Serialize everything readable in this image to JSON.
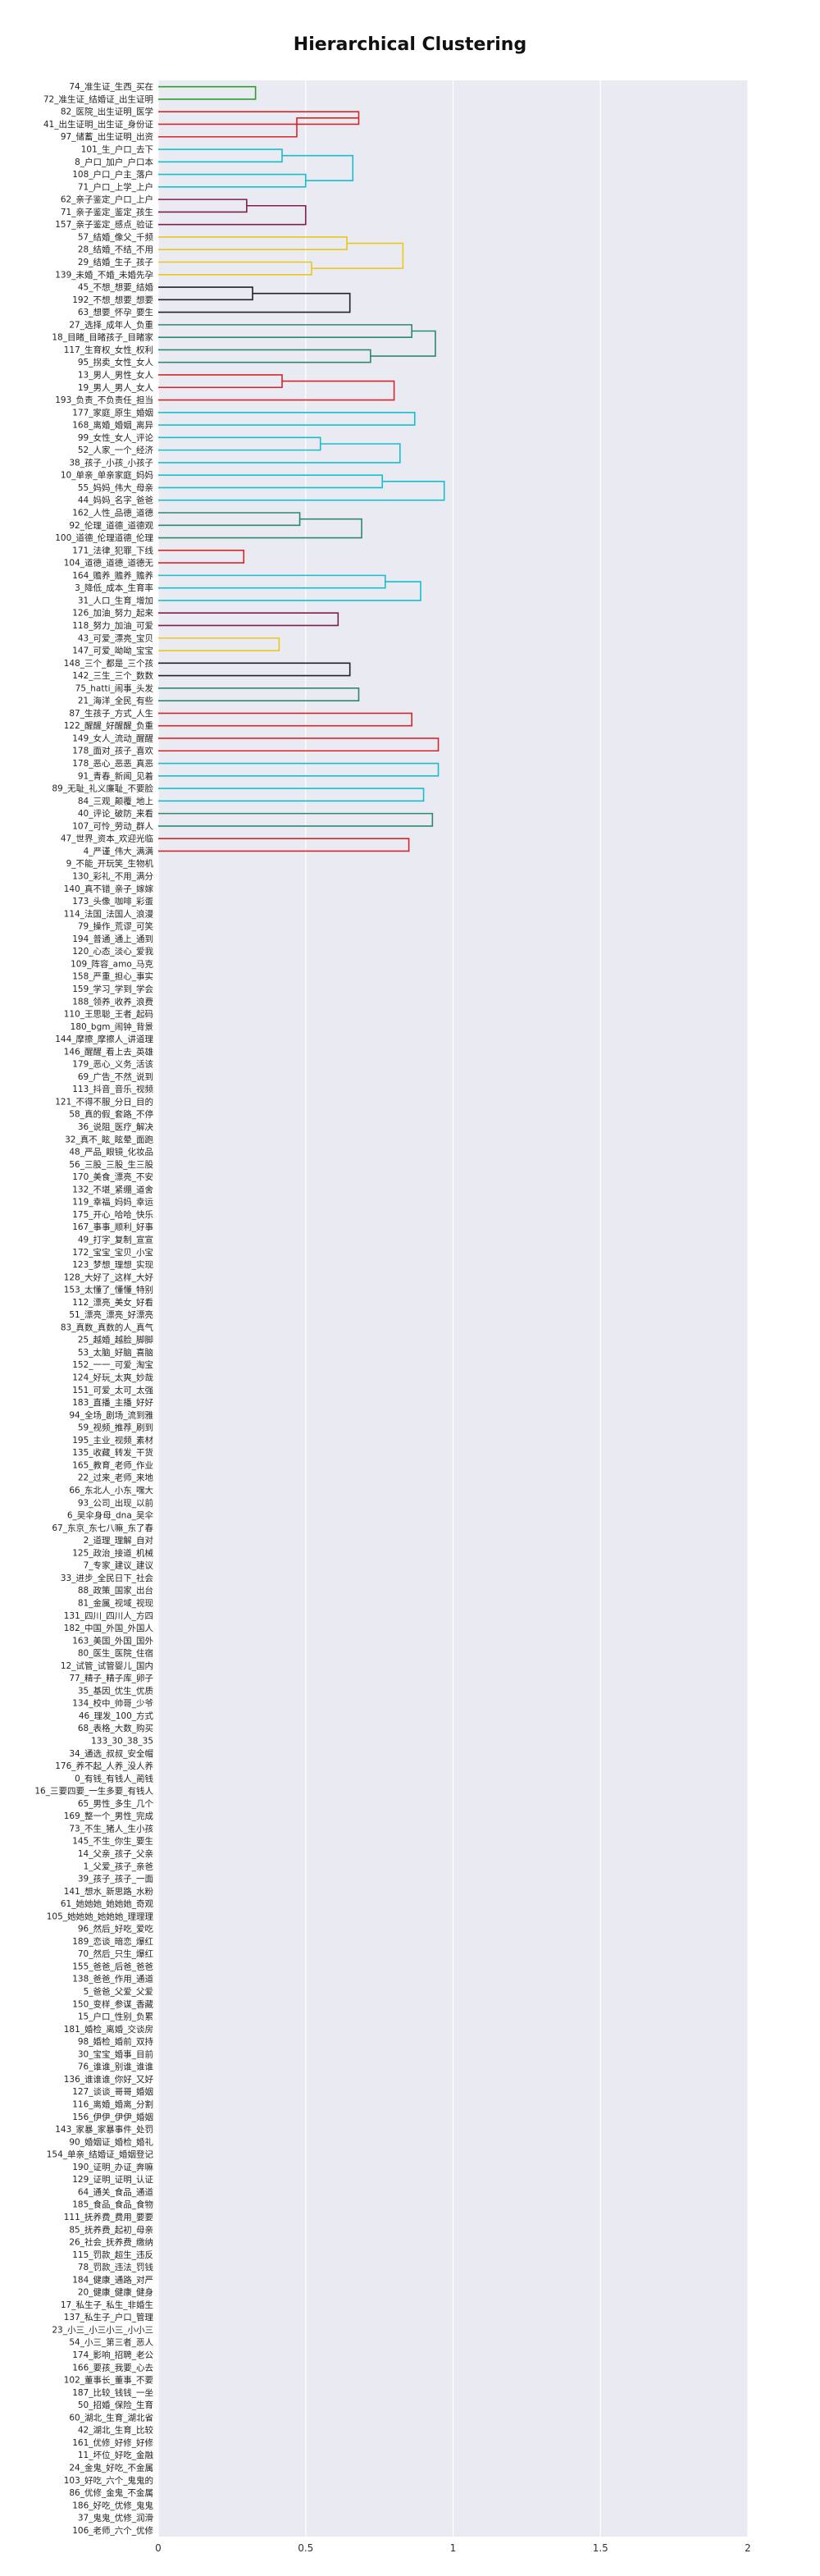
{
  "chart_data": {
    "type": "dendrogram",
    "title": "Hierarchical Clustering",
    "xlabel": "",
    "ylabel": "",
    "xlim": [
      0,
      2
    ],
    "x_ticks": [
      "0",
      "0.5",
      "1",
      "1.5",
      "2"
    ],
    "orientation": "left",
    "colors": {
      "plot_bg": "#eaeaf2",
      "grid": "#ffffff",
      "above": "#1f77b4",
      "cluster": [
        "#2ca02c",
        "#d62728",
        "#17becf",
        "#7f1f4f",
        "#e8c81a",
        "#222222",
        "#2a8a6a"
      ]
    },
    "leaves": [
      "74_准生证_生西_买在",
      "72_准生证_结婚证_出生证明",
      "82_医院_出生证明_医学",
      "41_出生证明_出生证_身份证",
      "97_储蓄_出生证明_出资",
      "101_生_户口_去下",
      "8_户口_加户_户口本",
      "108_户口_户主_落户",
      "71_户口_上学_上户",
      "62_亲子鉴定_户口_上户",
      "71_亲子鉴定_鉴定_孩生",
      "157_亲子鉴定_感点_验证",
      "57_结婚_像父_千频",
      "28_结婚_不结_不用",
      "29_结婚_生子_孩子",
      "139_未婚_不婚_未婚先孕",
      "45_不想_想要_结婚",
      "192_不想_想要_想要",
      "63_想要_怀孕_要生",
      "27_选择_成年人_负重",
      "18_目睹_目睹孩子_目睹家",
      "117_生育权_女性_权利",
      "95_拐卖_女性_女人",
      "13_男人_男性_女人",
      "19_男人_男人_女人",
      "193_负责_不负责任_担当",
      "177_家庭_原生_婚姻",
      "168_离婚_婚姻_离异",
      "99_女性_女人_评论",
      "52_人家_一个_经济",
      "38_孩子_小孩_小孩子",
      "10_单亲_单亲家庭_妈妈",
      "55_妈妈_伟大_母亲",
      "44_妈妈_名字_爸爸",
      "162_人性_品德_道德",
      "92_伦理_道德_道德观",
      "100_道德_伦理道德_伦理",
      "171_法律_犯罪_下线",
      "104_道德_道德_道德无",
      "164_赡养_赡养_赡养",
      "3_降低_成本_生育率",
      "31_人口_生育_增加",
      "126_加油_努力_起来",
      "118_努力_加油_可爱",
      "43_可爱_漂亮_宝贝",
      "147_可爱_呦呦_宝宝",
      "148_三个_都是_三个孩",
      "142_三生_三个_数数",
      "75_hatti_闹事_头发",
      "21_海洋_全民_有些",
      "87_生孩子_方式_人生",
      "122_醒醒_好醒醒_负重",
      "149_女人_流动_醒醒",
      "178_面对_孩子_喜欢",
      "178_恶心_恶恶_真恶",
      "91_青春_新闻_见着",
      "89_无耻_礼义廉耻_不要脸",
      "84_三观_颠覆_地上",
      "40_评论_破防_来看",
      "107_可怜_劳动_群人",
      "47_世界_资本_欢迎光临",
      "4_严谨_伟大_满满",
      "9_不能_开玩笑_生物机",
      "130_彩礼_不用_满分",
      "140_真不错_亲子_嫁嫁",
      "173_头像_咖啡_彩蛋",
      "114_法国_法国人_浪漫",
      "79_操作_荒谬_可笑",
      "194_普通_通上_通到",
      "120_心态_淡心_爱我",
      "109_阵容_amo_马克",
      "158_严重_担心_事实",
      "159_学习_学到_学会",
      "188_领养_收养_浪费",
      "110_王思聪_王者_起码",
      "180_bgm_闹钟_背景",
      "144_摩擦_摩擦人_讲道理",
      "146_醒醒_看上去_英雄",
      "179_恶心_义务_活该",
      "69_广告_不然_说到",
      "113_抖音_音乐_视频",
      "121_不得不服_分日_目的",
      "58_真的假_套路_不停",
      "36_说阻_医疗_解决",
      "32_真不_眩_眩晕_面跑",
      "48_严品_眼镜_化妆品",
      "56_三股_三股_生三股",
      "170_美食_漂亮_不安",
      "132_不堪_紧绷_道舍",
      "119_幸福_妈妈_幸运",
      "175_开心_哈哈_快乐",
      "167_事事_顺利_好事",
      "49_打字_复制_宣宣",
      "172_宝宝_宝贝_小宝",
      "123_梦想_理想_实现",
      "128_大好了_这样_大好",
      "153_太懂了_懂懂_特别",
      "112_漂亮_美女_好看",
      "51_漂亮_漂亮_好漂亮",
      "83_真数_真数的人_真气",
      "25_越婚_越脸_脚脚",
      "53_太脑_好脑_喜脑",
      "152_一一_可爱_淘宝",
      "124_好玩_太爽_妙哉",
      "151_可爱_太可_太强",
      "183_直播_主播_好好",
      "94_全场_剧场_流到雅",
      "59_视频_推荐_刷到",
      "195_主业_视频_素材",
      "135_收藏_转发_干货",
      "165_教育_老师_作业",
      "22_过来_老师_来地",
      "66_东北人_小东_嘿大",
      "93_公司_出现_以前",
      "6_吴伞身母_dna_吴伞",
      "67_东京_东七八嘛_东了春",
      "2_道理_理解_自对",
      "125_政治_接道_机械",
      "7_专家_建议_建议",
      "33_进步_全民日下_社会",
      "88_政策_国家_出台",
      "81_金属_视域_视现",
      "131_四川_四川人_方四",
      "182_中国_外国_外国人",
      "163_美国_外国_国外",
      "80_医生_医院_住宿",
      "12_试管_试管婴儿_国内",
      "77_精子_精子库_卵子",
      "35_基因_优生_优质",
      "134_校中_帅哥_少爷",
      "46_理发_100_方式",
      "68_表格_大数_购买",
      "133_30_38_35",
      "34_通选_叔叔_安全帽",
      "176_养不起_人养_没人养",
      "0_有钱_有钱人_蔺钱",
      "16_三要四要_一生多要_有钱人",
      "65_男性_多生_几个",
      "169_整一个_男性_完成",
      "73_不生_猪人_生小孩",
      "145_不生_你生_要生",
      "14_父亲_孩子_父亲",
      "1_父爱_孩子_亲爸",
      "39_孩子_孩子_一面",
      "141_想水_新思路_水粉",
      "61_她她她_她她她_奇观",
      "105_她她她_她她她_理理理",
      "96_然后_好吃_爱吃",
      "189_恋谈_暗恋_爆红",
      "70_然后_只生_爆红",
      "155_爸爸_后爸_爸爸",
      "138_爸爸_作用_通道",
      "5_爸爸_父爱_父爱",
      "150_变样_参谋_香藏",
      "15_户口_性别_负累",
      "181_婚检_离婚_交谈房",
      "98_婚检_婚前_双持",
      "30_宝宝_婚事_目前",
      "76_谁谁_别谁_谁谁",
      "136_谁谁谁_你好_又好",
      "127_谈谈_哥哥_婚姻",
      "116_离婚_婚离_分割",
      "156_伊伊_伊伊_婚姻",
      "143_家暴_家暴事件_处罚",
      "90_婚姻证_婚检_婚礼",
      "154_单亲_结婚证_婚姻登记",
      "190_证明_办证_奔嘛",
      "129_证明_证明_认证",
      "64_通关_食品_通道",
      "185_食品_食品_食物",
      "111_抚养费_费用_要要",
      "85_抚养费_起初_母亲",
      "26_社会_抚养费_缴纳",
      "115_罚款_超生_违反",
      "78_罚款_违法_罚钱",
      "184_健康_通路_对严",
      "20_健康_健康_健身",
      "17_私生子_私生_非婚生",
      "137_私生子_户口_管理",
      "23_小三_小三小三_小小三",
      "54_小三_第三者_恶人",
      "174_影响_招聘_老公",
      "166_要孩_我要_心去",
      "102_董事长_董事_不要",
      "187_比较_钱钱_一坐",
      "50_招婚_保险_生育",
      "60_湖北_生育_湖北省",
      "42_湖北_生育_比较",
      "161_优修_好修_好修",
      "11_坏位_好吃_金融",
      "24_金鬼_好吃_不金属",
      "103_好吃_六个_鬼鬼的",
      "86_优修_金鬼_不金属",
      "186_好吃_优修_鬼鬼",
      "37_鬼鬼_优修_润滑",
      "106_老师_六个_优修"
    ],
    "links": [
      {
        "children": [
          0,
          1
        ],
        "height": 0.33,
        "color": "cluster1"
      },
      {
        "children": [
          2,
          3
        ],
        "height": 0.68,
        "color": "cluster2"
      },
      {
        "children": [
          4,
          "n1"
        ],
        "height": 0.47,
        "color": "cluster2"
      },
      {
        "children": [
          5,
          6
        ],
        "height": 0.42,
        "color": "cluster3"
      },
      {
        "children": [
          7,
          8
        ],
        "height": 0.5,
        "color": "cluster3"
      },
      {
        "children": [
          "n3",
          "n4"
        ],
        "height": 0.66,
        "color": "cluster3"
      },
      {
        "children": [
          9,
          10
        ],
        "height": 0.3,
        "color": "cluster4"
      },
      {
        "children": [
          "n6",
          11
        ],
        "height": 0.5,
        "color": "cluster4"
      },
      {
        "children": [
          12,
          13
        ],
        "height": 0.64,
        "color": "cluster5"
      },
      {
        "children": [
          14,
          15
        ],
        "height": 0.52,
        "color": "cluster5"
      },
      {
        "children": [
          "n8",
          "n9"
        ],
        "height": 0.83,
        "color": "cluster5"
      },
      {
        "children": [
          16,
          17
        ],
        "height": 0.32,
        "color": "cluster6"
      },
      {
        "children": [
          "n11",
          18
        ],
        "height": 0.65,
        "color": "cluster6"
      },
      {
        "children": [
          19,
          20
        ],
        "height": 0.86,
        "color": "cluster7"
      },
      {
        "children": [
          21,
          22
        ],
        "height": 0.72,
        "color": "cluster7"
      },
      {
        "children": [
          "n13",
          "n14"
        ],
        "height": 0.94,
        "color": "cluster7"
      },
      {
        "children": [
          23,
          24
        ],
        "height": 0.42,
        "color": "cluster2"
      },
      {
        "children": [
          25,
          "n16"
        ],
        "height": 0.8,
        "color": "cluster2"
      },
      {
        "children": [
          26,
          27
        ],
        "height": 0.87,
        "color": "cluster3"
      },
      {
        "children": [
          28,
          29
        ],
        "height": 0.55,
        "color": "cluster3"
      },
      {
        "children": [
          30,
          "n19"
        ],
        "height": 0.82,
        "color": "cluster3"
      },
      {
        "children": [
          31,
          32
        ],
        "height": 0.76,
        "color": "cluster3"
      },
      {
        "children": [
          33,
          "n21"
        ],
        "height": 0.97,
        "color": "cluster3"
      },
      {
        "children": [
          34,
          35
        ],
        "height": 0.48,
        "color": "cluster7"
      },
      {
        "children": [
          36,
          "n23"
        ],
        "height": 0.69,
        "color": "cluster7"
      },
      {
        "children": [
          37,
          38
        ],
        "height": 0.29,
        "color": "cluster2"
      },
      {
        "children": [
          39,
          40
        ],
        "height": 0.77,
        "color": "cluster3"
      },
      {
        "children": [
          41,
          "n26"
        ],
        "height": 0.89,
        "color": "cluster3"
      },
      {
        "children": [
          42,
          43
        ],
        "height": 0.61,
        "color": "cluster4"
      },
      {
        "children": [
          44,
          45
        ],
        "height": 0.41,
        "color": "cluster5"
      },
      {
        "children": [
          46,
          47
        ],
        "height": 0.65,
        "color": "cluster6"
      },
      {
        "children": [
          48,
          49
        ],
        "height": 0.68,
        "color": "cluster7"
      },
      {
        "children": [
          50,
          51
        ],
        "height": 0.86,
        "color": "cluster2"
      },
      {
        "children": [
          52,
          53
        ],
        "height": 0.95,
        "color": "cluster2"
      },
      {
        "children": [
          54,
          55
        ],
        "height": 0.95,
        "color": "cluster3"
      },
      {
        "children": [
          56,
          57
        ],
        "height": 0.9,
        "color": "cluster3"
      },
      {
        "children": [
          58,
          59
        ],
        "height": 0.93,
        "color": "cluster7"
      },
      {
        "children": [
          60,
          61
        ],
        "height": 0.85,
        "color": "cluster2"
      }
    ]
  }
}
